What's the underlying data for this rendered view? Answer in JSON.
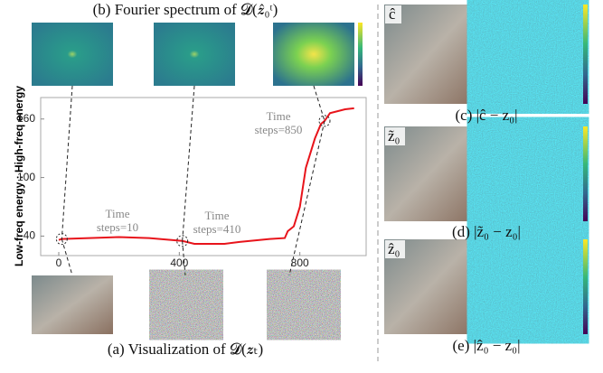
{
  "figure": {
    "caption_b": "(b)  Fourier spectrum of 𝓓(𝒛̂₀ᵗ)",
    "caption_a": "(a)  Visualization of 𝓓(𝒛ₜ)",
    "caption_c": "(c) |ĉ − z₀|",
    "caption_d": "(d) |z̃₀ − z₀|",
    "caption_e": "(e) |ẑ₀ − z₀|",
    "label_c": "ĉ",
    "label_d": "z̃₀",
    "label_e": "ẑ₀"
  },
  "chart_data": {
    "type": "line",
    "ylabel": "Low-freq energy : High-freq energy",
    "x": [
      0,
      10,
      100,
      200,
      300,
      410,
      450,
      550,
      600,
      700,
      750,
      760,
      780,
      800,
      820,
      850,
      870,
      882,
      900,
      950,
      980
    ],
    "values": [
      36,
      37,
      38,
      39,
      38,
      35,
      32,
      32,
      34,
      37,
      38,
      45,
      50,
      70,
      110,
      140,
      155,
      158,
      166,
      170,
      171
    ],
    "color": "#e8141b",
    "xlim": [
      -60,
      1020
    ],
    "ylim": [
      20,
      182
    ],
    "xticks": [
      0,
      400,
      800
    ],
    "yticks": [
      40,
      100,
      160
    ],
    "annotations": [
      "Time\nsteps=10",
      "Time\nsteps=410",
      "Time\nsteps=850"
    ]
  }
}
